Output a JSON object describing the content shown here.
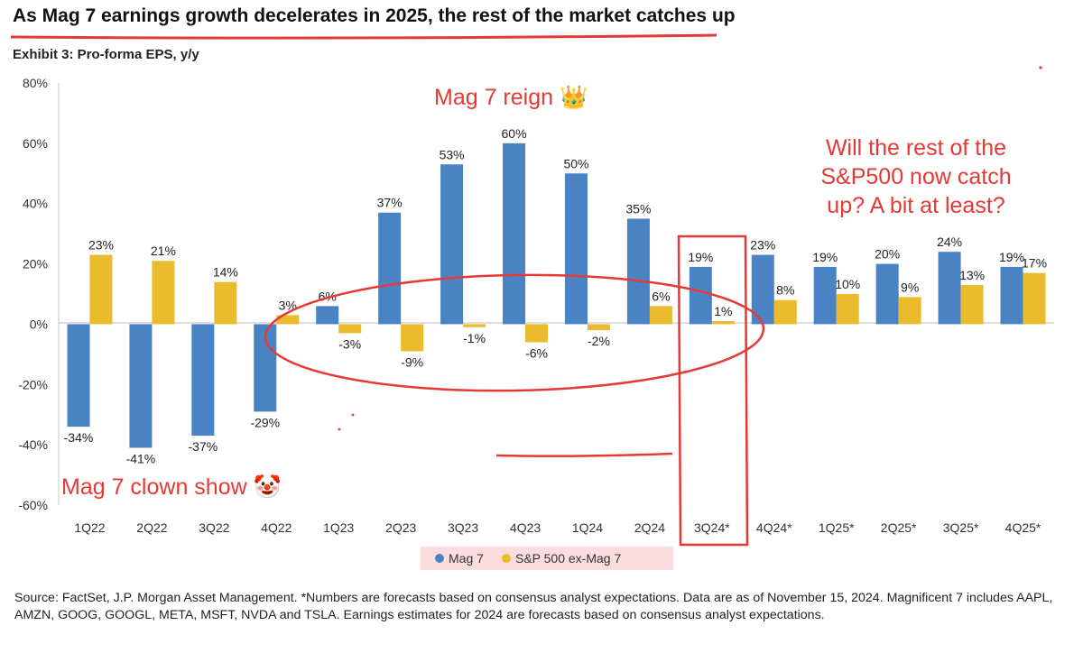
{
  "header": {
    "title": "As Mag 7 earnings growth decelerates in 2025, the rest of the market catches up",
    "subtitle": "Exhibit 3: Pro-forma EPS, y/y"
  },
  "annotations": {
    "reign": "Mag 7 reign 👑",
    "clown": "Mag 7 clown show 🤡",
    "question_lines": [
      "Will the rest of the",
      "S&P500 now catch",
      "up? A bit at least?"
    ]
  },
  "colors": {
    "mag7": "#4a83c4",
    "sp500_ex": "#ebbb2e",
    "annotation_red": "#e53935",
    "legend_bg": "#fbdde0"
  },
  "chart_data": {
    "type": "bar",
    "title": "Exhibit 3: Pro-forma EPS, y/y",
    "categories": [
      "1Q22",
      "2Q22",
      "3Q22",
      "4Q22",
      "1Q23",
      "2Q23",
      "3Q23",
      "4Q23",
      "1Q24",
      "2Q24",
      "3Q24*",
      "4Q24*",
      "1Q25*",
      "2Q25*",
      "3Q25*",
      "4Q25*"
    ],
    "series": [
      {
        "name": "Mag 7",
        "values": [
          -34,
          -41,
          -37,
          -29,
          6,
          37,
          53,
          60,
          50,
          35,
          19,
          23,
          19,
          20,
          24,
          19
        ]
      },
      {
        "name": "S&P 500 ex-Mag 7",
        "values": [
          23,
          21,
          14,
          3,
          -3,
          -9,
          -1,
          -6,
          -2,
          6,
          1,
          8,
          10,
          9,
          13,
          17
        ]
      }
    ],
    "data_label_suffix": "%",
    "ylim": [
      -60,
      80
    ],
    "yticks": [
      -60,
      -40,
      -20,
      0,
      20,
      40,
      60,
      80
    ],
    "ytick_labels": [
      "-60%",
      "-40%",
      "-20%",
      "0%",
      "20%",
      "40%",
      "60%",
      "80%"
    ],
    "legend": [
      "Mag 7",
      "S&P 500 ex-Mag 7"
    ],
    "legend_position": "bottom-center",
    "grid": false
  },
  "source": {
    "text": "Source: FactSet, J.P. Morgan Asset Management. *Numbers are forecasts based on consensus analyst expectations. Data are as of November 15, 2024. Magnificent 7 includes AAPL, AMZN, GOOG, GOOGL, META, MSFT, NVDA and TSLA. Earnings estimates for 2024 are forecasts based on consensus analyst expectations."
  }
}
